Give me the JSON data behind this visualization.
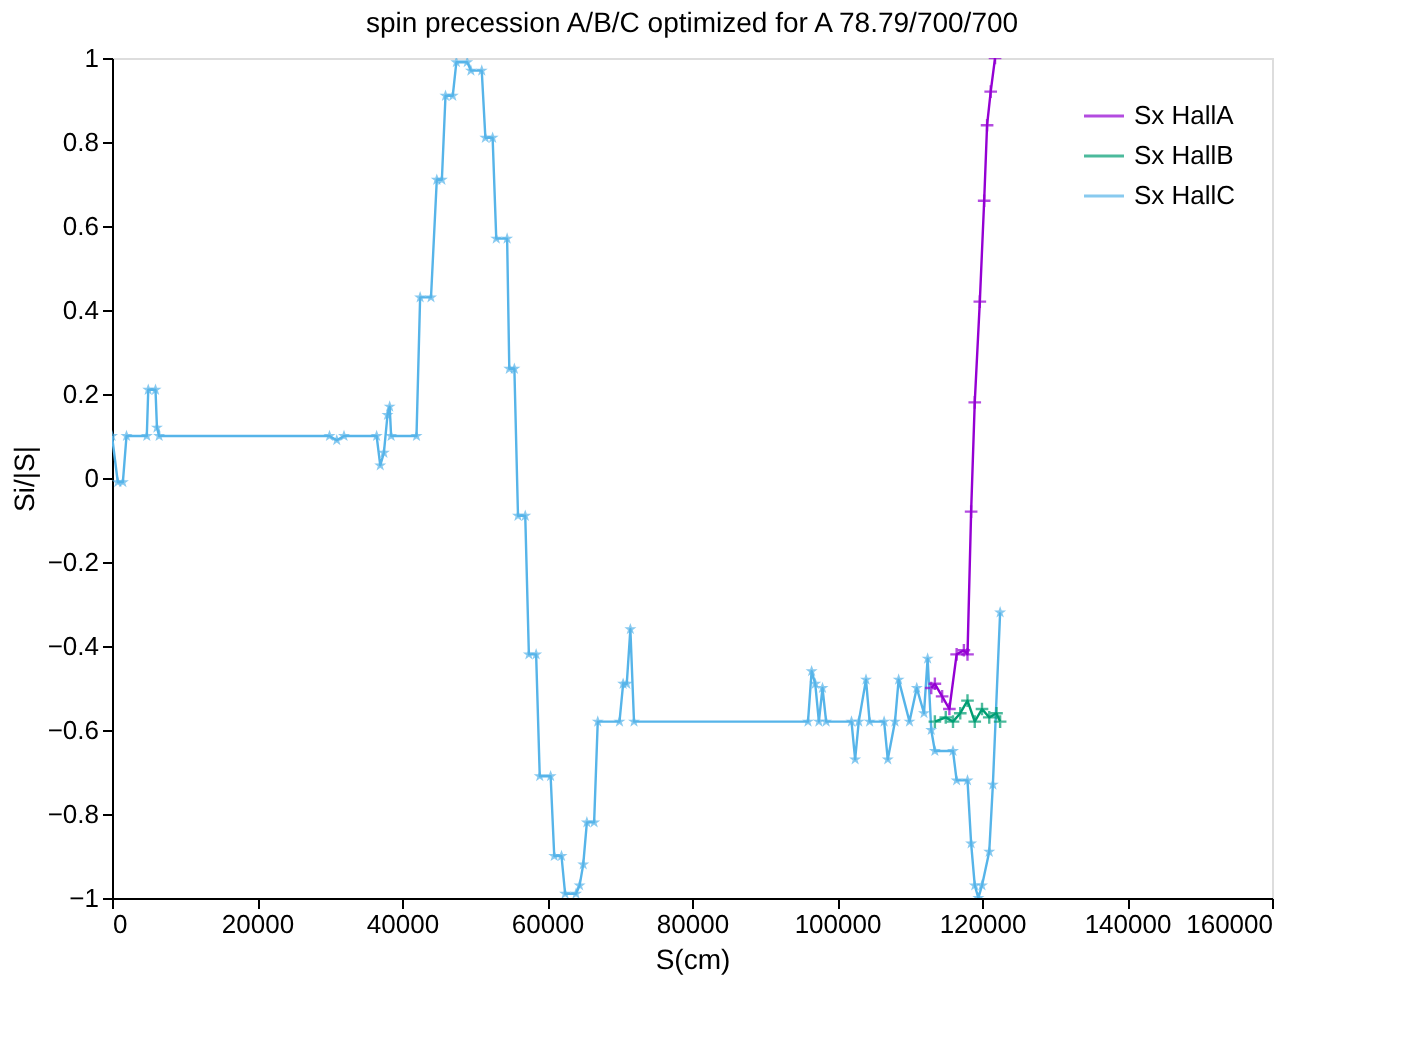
{
  "chart_data": {
    "type": "line",
    "title": "spin precession A/B/C optimized for A 78.79/700/700",
    "xlabel": "S(cm)",
    "ylabel": "Si/|S|",
    "xlim": [
      0,
      160000
    ],
    "xticks": [
      0,
      20000,
      40000,
      60000,
      80000,
      100000,
      120000,
      140000,
      160000
    ],
    "ylim": [
      -1,
      1
    ],
    "yticks": [
      -1,
      -0.8,
      -0.6,
      -0.4,
      -0.2,
      0,
      0.2,
      0.4,
      0.6,
      0.8,
      1
    ],
    "grid": false,
    "legend": "top right",
    "series": [
      {
        "name": "Sx HallA",
        "color": "#9400d3",
        "marker": "cross",
        "x": [
          113000,
          113500,
          114500,
          115500,
          116500,
          117500,
          118000,
          118500,
          119000,
          119700,
          120300,
          120700,
          121200,
          121800
        ],
        "values": [
          -0.5,
          -0.49,
          -0.52,
          -0.55,
          -0.42,
          -0.41,
          -0.42,
          -0.08,
          0.18,
          0.42,
          0.66,
          0.84,
          0.92,
          1.0
        ]
      },
      {
        "name": "Sx HallB",
        "color": "#009e73",
        "marker": "cross",
        "x": [
          113500,
          115000,
          116000,
          117000,
          118000,
          119000,
          120000,
          121000,
          122000,
          122500
        ],
        "values": [
          -0.58,
          -0.57,
          -0.58,
          -0.56,
          -0.53,
          -0.58,
          -0.55,
          -0.57,
          -0.56,
          -0.58
        ]
      },
      {
        "name": "Sx HallC",
        "color": "#56b4e9",
        "marker": "star",
        "x": [
          0,
          800,
          1500,
          2000,
          4800,
          5000,
          6000,
          6200,
          6500,
          30000,
          31000,
          32000,
          36500,
          37000,
          37500,
          38000,
          38300,
          38500,
          42000,
          42500,
          44000,
          44800,
          45500,
          46000,
          47000,
          47500,
          49000,
          49500,
          51000,
          51500,
          52500,
          53000,
          54500,
          54800,
          55500,
          56000,
          57000,
          57500,
          58500,
          59000,
          60500,
          61000,
          62000,
          62500,
          64000,
          64500,
          65000,
          65500,
          66500,
          67000,
          70000,
          70500,
          71000,
          71500,
          72000,
          96000,
          96500,
          97000,
          97500,
          98000,
          98500,
          102000,
          102500,
          103000,
          104000,
          104500,
          106500,
          107000,
          108000,
          108500,
          110000,
          111000,
          112000,
          112500,
          113000,
          113500,
          116000,
          116500,
          118000,
          118500,
          119000,
          119500,
          120000,
          121000,
          121500,
          122500
        ],
        "values": [
          0.1,
          -0.01,
          -0.01,
          0.1,
          0.1,
          0.21,
          0.21,
          0.12,
          0.1,
          0.1,
          0.09,
          0.1,
          0.1,
          0.03,
          0.06,
          0.15,
          0.17,
          0.1,
          0.1,
          0.43,
          0.43,
          0.71,
          0.71,
          0.91,
          0.91,
          0.99,
          0.99,
          0.97,
          0.97,
          0.81,
          0.81,
          0.57,
          0.57,
          0.26,
          0.26,
          -0.09,
          -0.09,
          -0.42,
          -0.42,
          -0.71,
          -0.71,
          -0.9,
          -0.9,
          -0.99,
          -0.99,
          -0.97,
          -0.92,
          -0.82,
          -0.82,
          -0.58,
          -0.58,
          -0.49,
          -0.49,
          -0.36,
          -0.58,
          -0.58,
          -0.46,
          -0.49,
          -0.58,
          -0.5,
          -0.58,
          -0.58,
          -0.67,
          -0.58,
          -0.48,
          -0.58,
          -0.58,
          -0.67,
          -0.58,
          -0.48,
          -0.58,
          -0.5,
          -0.56,
          -0.43,
          -0.6,
          -0.65,
          -0.65,
          -0.72,
          -0.72,
          -0.87,
          -0.97,
          -1.0,
          -0.97,
          -0.89,
          -0.73,
          -0.32
        ]
      }
    ]
  }
}
